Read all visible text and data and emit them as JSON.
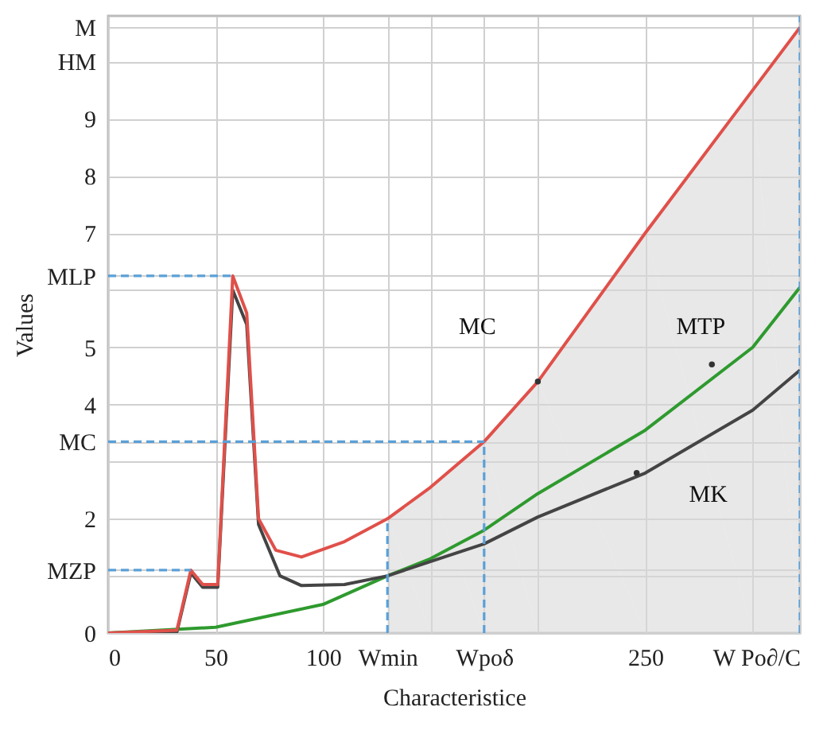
{
  "chart_data": {
    "type": "line",
    "xlabel": "Characteristice",
    "ylabel": "Values",
    "xlim": [
      0,
      322
    ],
    "ylim": [
      0,
      10.8
    ],
    "xticks": [
      0,
      50,
      100,
      {
        "value": 130,
        "label": "Wmin"
      },
      {
        "value": 150,
        "label": null
      },
      {
        "value": 175,
        "label": "Wpoδ"
      },
      {
        "value": 200,
        "label": null
      },
      250,
      {
        "value": 300,
        "label": null
      },
      {
        "value": 322,
        "label": "W Po∂/C"
      }
    ],
    "yticks": [
      0,
      {
        "value": 1,
        "label": null
      },
      {
        "value": 1.1,
        "label": "MZP"
      },
      2,
      {
        "value": 3,
        "label": null
      },
      {
        "value": 3.35,
        "label": "MC"
      },
      4,
      5,
      {
        "value": 6,
        "label": null
      },
      {
        "value": 6.25,
        "label": "MLP"
      },
      7,
      8,
      9,
      {
        "value": 10,
        "label": "HM"
      },
      {
        "value": 10.6,
        "label": "M"
      }
    ],
    "grid": true,
    "series": [
      {
        "type": "area",
        "color": "#d9d9d9",
        "x": [
          130,
          150,
          175,
          200,
          250,
          300,
          322
        ],
        "values": [
          2.0,
          2.55,
          3.35,
          4.4,
          7.0,
          9.5,
          10.6
        ]
      },
      {
        "color": "#2e9a2e",
        "x": [
          0,
          50,
          100,
          130,
          150,
          175,
          200,
          250,
          300,
          322
        ],
        "values": [
          0,
          0.1,
          0.5,
          1.0,
          1.3,
          1.8,
          2.44,
          3.55,
          5.0,
          6.05
        ]
      },
      {
        "color": "#444444",
        "x": [
          0,
          32,
          38.5,
          44,
          51,
          58,
          64.5,
          70,
          80,
          90,
          110,
          130,
          150,
          175,
          200,
          250,
          300,
          322
        ],
        "values": [
          0,
          0.02,
          1.05,
          0.8,
          0.8,
          6.0,
          5.4,
          1.9,
          1.0,
          0.83,
          0.85,
          1.0,
          1.25,
          1.56,
          2.03,
          2.8,
          3.9,
          4.6
        ]
      },
      {
        "color": "#e0504a",
        "x": [
          0,
          32,
          38.5,
          44,
          51,
          58,
          64.5,
          70,
          78,
          90,
          110,
          130,
          150,
          175,
          200,
          250,
          300,
          322
        ],
        "values": [
          0,
          0.05,
          1.1,
          0.85,
          0.85,
          6.25,
          5.6,
          2.0,
          1.45,
          1.33,
          1.6,
          2.0,
          2.55,
          3.35,
          4.4,
          7.0,
          9.5,
          10.6
        ]
      },
      {
        "type": "line",
        "color": "#5aa0d8",
        "line_style": "dashed",
        "x": [
          0,
          58
        ],
        "values": [
          6.25,
          6.25
        ]
      },
      {
        "type": "line",
        "color": "#5aa0d8",
        "line_style": "dashed",
        "x": [
          0,
          38.5
        ],
        "values": [
          1.1,
          1.1
        ]
      },
      {
        "type": "line",
        "color": "#5aa0d8",
        "line_style": "dashed",
        "x": [
          0,
          175
        ],
        "values": [
          3.35,
          3.35
        ]
      },
      {
        "type": "line",
        "color": "#5aa0d8",
        "line_style": "dashed",
        "x": [
          175,
          175
        ],
        "values": [
          0,
          3.35
        ]
      },
      {
        "type": "line",
        "color": "#5aa0d8",
        "line_style": "dashed",
        "x": [
          130,
          130
        ],
        "values": [
          0,
          2.0
        ]
      },
      {
        "type": "line",
        "color": "#5aa0d8",
        "line_style": "dashed",
        "x": [
          322,
          322
        ],
        "values": [
          0,
          10.8
        ]
      }
    ],
    "annotations": [
      {
        "text": "MC",
        "x": 200,
        "y": 4.4
      },
      {
        "text": "MTP",
        "x": 281,
        "y": 4.7
      },
      {
        "text": "MK",
        "x": 246,
        "y": 2.8
      }
    ]
  }
}
